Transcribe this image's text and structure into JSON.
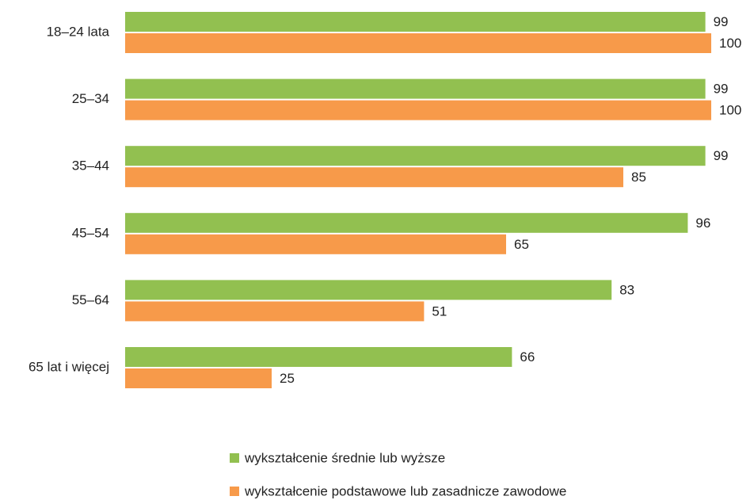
{
  "chart_data": {
    "type": "bar",
    "orientation": "horizontal",
    "categories": [
      "18–24 lata",
      "25–34",
      "35–44",
      "45–54",
      "55–64",
      "65 lat i więcej"
    ],
    "series": [
      {
        "name": "wykształcenie średnie lub wyższe",
        "color": "#92c050",
        "values": [
          99,
          99,
          99,
          96,
          83,
          66
        ]
      },
      {
        "name": "wykształcenie podstawowe lub zasadnicze zawodowe",
        "color": "#f79a4a",
        "values": [
          100,
          100,
          85,
          65,
          51,
          25
        ]
      }
    ],
    "xlim": [
      0,
      100
    ]
  }
}
